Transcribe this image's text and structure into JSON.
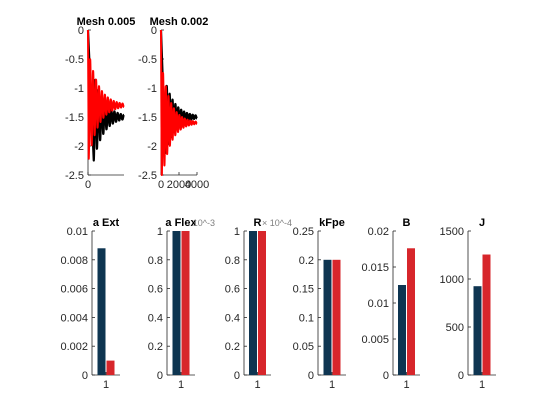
{
  "colors": {
    "black": "#000000",
    "red": "#ff0000",
    "bar_dark": "#0e3551",
    "bar_red": "#d7262b",
    "axis": "#262626",
    "grid": "#7f7f7f"
  },
  "chart_data": [
    {
      "type": "line",
      "title": "Mesh 0.005",
      "xlim": [
        0,
        1200
      ],
      "ylim": [
        -2.5,
        0
      ],
      "xticks": [
        0
      ],
      "yticks": [
        0,
        -0.5,
        -1,
        -1.5,
        -2,
        -2.5
      ],
      "ytick_labels": [
        "0",
        "-0.5",
        "-1",
        "-1.5",
        "-2",
        "-2.5"
      ],
      "series": [
        {
          "color": "black",
          "model": "damped_oscillation",
          "x_start": 0,
          "x_end": 1200,
          "onset": 0.16,
          "base": -1.5,
          "initial_amplitude": 0.75,
          "decay": 3.0,
          "cycles": 9.5,
          "width": 2.2
        },
        {
          "color": "red",
          "model": "damped_oscillation",
          "x_start": 0,
          "x_end": 1200,
          "onset": 0.02,
          "base": -1.3,
          "initial_amplitude": 0.92,
          "decay": 3.5,
          "cycles": 12,
          "width": 2.0
        }
      ]
    },
    {
      "type": "line",
      "title": "Mesh 0.002",
      "xlim": [
        0,
        4000
      ],
      "ylim": [
        -2.5,
        0
      ],
      "xticks": [
        0,
        2000,
        4000
      ],
      "xtick_labels": [
        "0",
        "2000",
        "4000"
      ],
      "yticks": [
        0,
        -0.5,
        -1,
        -1.5,
        -2,
        -2.5
      ],
      "ytick_labels": [
        "0",
        "-0.5",
        "-1",
        "-1.5",
        "-2",
        "-2.5"
      ],
      "series": [
        {
          "color": "black",
          "model": "damped_oscillation",
          "x_start": 0,
          "x_end": 4000,
          "onset": 0.12,
          "base": -1.5,
          "initial_amplitude": 0.62,
          "decay": 3.2,
          "cycles": 11,
          "width": 2.2
        },
        {
          "color": "red",
          "model": "damped_oscillation",
          "x_start": 0,
          "x_end": 4000,
          "onset": 0.02,
          "base": -1.6,
          "initial_amplitude": 1.0,
          "decay": 4.0,
          "cycles": 13,
          "width": 2.0
        }
      ]
    },
    {
      "type": "bar",
      "title": "a Ext",
      "categories": [
        "1"
      ],
      "series": [
        {
          "color": "bar_dark",
          "values": [
            0.0088
          ]
        },
        {
          "color": "bar_red",
          "values": [
            0.001
          ]
        }
      ],
      "ylim": [
        0,
        0.01
      ],
      "yticks": [
        0,
        0.002,
        0.004,
        0.006,
        0.008,
        0.01
      ],
      "ytick_labels": [
        "0",
        "0.002",
        "0.004",
        "0.006",
        "0.008",
        "0.01"
      ]
    },
    {
      "type": "bar",
      "title": "a Flex",
      "exponent_label": "× 10^-3",
      "categories": [
        "1"
      ],
      "series": [
        {
          "color": "bar_dark",
          "values": [
            1.0
          ]
        },
        {
          "color": "bar_red",
          "values": [
            1.0
          ]
        }
      ],
      "ylim": [
        0,
        1
      ],
      "yticks": [
        0,
        0.2,
        0.4,
        0.6,
        0.8,
        1
      ],
      "ytick_labels": [
        "0",
        "0.2",
        "0.4",
        "0.6",
        "0.8",
        "1"
      ]
    },
    {
      "type": "bar",
      "title": "R",
      "exponent_label": "× 10^-4",
      "categories": [
        "1"
      ],
      "series": [
        {
          "color": "bar_dark",
          "values": [
            1.0
          ]
        },
        {
          "color": "bar_red",
          "values": [
            1.0
          ]
        }
      ],
      "ylim": [
        0,
        1
      ],
      "yticks": [
        0,
        0.2,
        0.4,
        0.6,
        0.8,
        1
      ],
      "ytick_labels": [
        "0",
        "0.2",
        "0.4",
        "0.6",
        "0.8",
        "1"
      ]
    },
    {
      "type": "bar",
      "title": "kFpe",
      "categories": [
        "1"
      ],
      "series": [
        {
          "color": "bar_dark",
          "values": [
            0.2
          ]
        },
        {
          "color": "bar_red",
          "values": [
            0.2
          ]
        }
      ],
      "ylim": [
        0,
        0.25
      ],
      "yticks": [
        0,
        0.05,
        0.1,
        0.15,
        0.2,
        0.25
      ],
      "ytick_labels": [
        "0",
        "0.05",
        "0.1",
        "0.15",
        "0.2",
        "0.25"
      ]
    },
    {
      "type": "bar",
      "title": "B",
      "categories": [
        "1"
      ],
      "series": [
        {
          "color": "bar_dark",
          "values": [
            0.0125
          ]
        },
        {
          "color": "bar_red",
          "values": [
            0.0176
          ]
        }
      ],
      "ylim": [
        0,
        0.02
      ],
      "yticks": [
        0,
        0.005,
        0.01,
        0.015,
        0.02
      ],
      "ytick_labels": [
        "0",
        "0.005",
        "0.01",
        "0.015",
        "0.02"
      ]
    },
    {
      "type": "bar",
      "title": "J",
      "categories": [
        "1"
      ],
      "series": [
        {
          "color": "bar_dark",
          "values": [
            925
          ]
        },
        {
          "color": "bar_red",
          "values": [
            1255
          ]
        }
      ],
      "ylim": [
        0,
        1500
      ],
      "yticks": [
        0,
        500,
        1000,
        1500
      ],
      "ytick_labels": [
        "0",
        "500",
        "1000",
        "1500"
      ]
    }
  ]
}
